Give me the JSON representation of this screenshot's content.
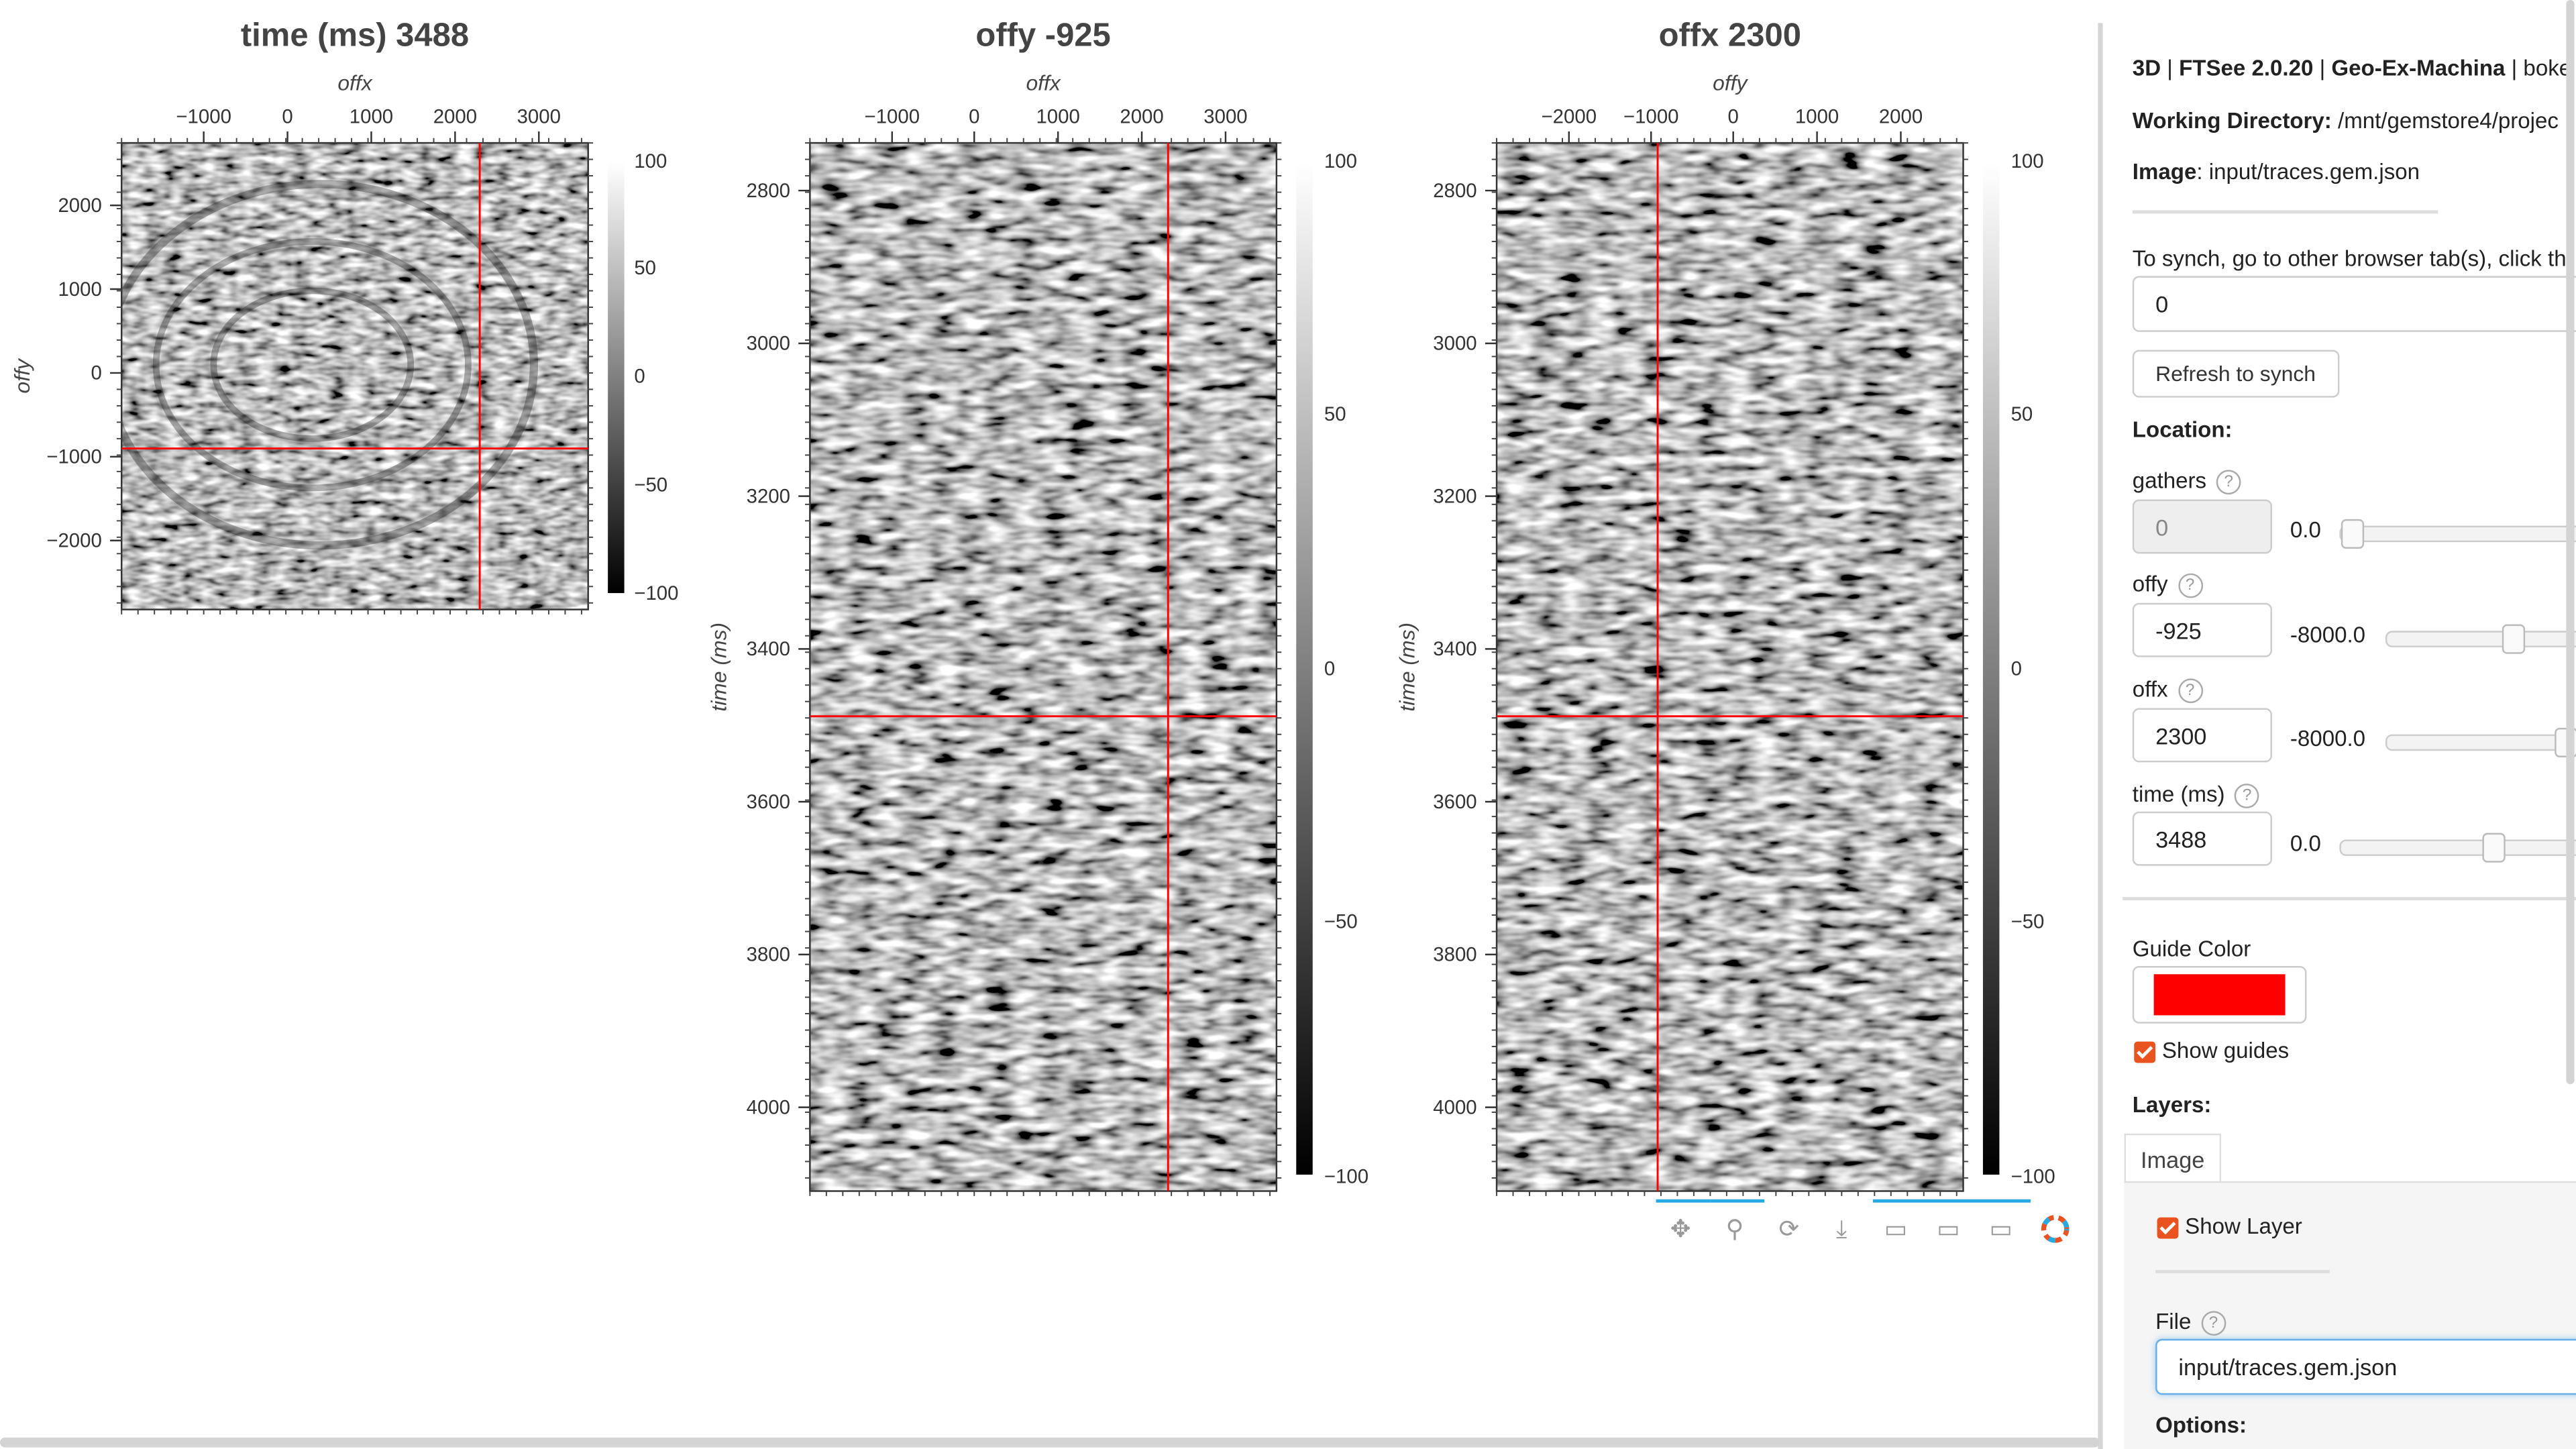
{
  "plots": [
    {
      "title": "time (ms) 3488",
      "xlabel": "offx",
      "ylabel": "offy",
      "xticks": [
        "−1000",
        "0",
        "1000",
        "2000",
        "3000"
      ],
      "yticks": [
        "2000",
        "1000",
        "0",
        "−1000",
        "−2000"
      ],
      "colorbar_ticks": [
        "100",
        "50",
        "0",
        "−50",
        "−100"
      ],
      "guide_x": 2300,
      "guide_y": -925
    },
    {
      "title": "offy -925",
      "xlabel": "offx",
      "ylabel": "time (ms)",
      "xticks": [
        "−1000",
        "0",
        "1000",
        "2000",
        "3000"
      ],
      "yticks": [
        "2800",
        "3000",
        "3200",
        "3400",
        "3600",
        "3800",
        "4000"
      ],
      "colorbar_ticks": [
        "100",
        "50",
        "0",
        "−50",
        "−100"
      ],
      "guide_x": 2300,
      "guide_y": 3488
    },
    {
      "title": "offx 2300",
      "xlabel": "offy",
      "ylabel": "time (ms)",
      "xticks": [
        "−2000",
        "−1000",
        "0",
        "1000",
        "2000"
      ],
      "yticks": [
        "2800",
        "3000",
        "3200",
        "3400",
        "3600",
        "3800",
        "4000"
      ],
      "colorbar_ticks": [
        "100",
        "50",
        "0",
        "−50",
        "−100"
      ],
      "guide_x": -925,
      "guide_y": 3488
    }
  ],
  "colors": {
    "guide": "#ff0000",
    "accent": "#e8531f",
    "toolbar_active": "#26aae1"
  },
  "toolbar": {
    "icons": [
      "pan-icon",
      "wheel-zoom-icon",
      "reset-icon",
      "save-icon",
      "hover-icon",
      "hover-icon",
      "hover-icon",
      "bokeh-logo-icon"
    ]
  },
  "sidebar": {
    "header": {
      "part1": "3D",
      "sep1": " | ",
      "part2": "FTSee 2.0.20",
      "sep2": " | ",
      "part3": "Geo-Ex-Machina",
      "sep3": " | ",
      "part4": "boke"
    },
    "working_dir_label": "Working Directory:",
    "working_dir_value": " /mnt/gemstore4/projec",
    "image_label": "Image",
    "image_value": ": input/traces.gem.json",
    "synch_text": "To synch, go to other browser tab(s), click th",
    "synch_value": "0",
    "refresh_button": "Refresh to synch",
    "location_label": "Location:",
    "gathers": {
      "label": "gathers",
      "value": "0",
      "slider_min": "0.0",
      "slider_fraction": 0.0
    },
    "offy": {
      "label": "offy",
      "value": "-925",
      "slider_min": "-8000.0",
      "slider_fraction": 0.44
    },
    "offx": {
      "label": "offx",
      "value": "2300",
      "slider_min": "-8000.0",
      "slider_fraction": 0.66
    },
    "time": {
      "label": "time (ms)",
      "value": "3488",
      "slider_min": "0.0",
      "slider_fraction": 0.62
    },
    "guide_color_label": "Guide Color",
    "show_guides_label": "Show guides",
    "layers_label": "Layers:",
    "tab_image": "Image",
    "show_layer_label": "Show Layer",
    "file_label": "File",
    "file_value": "input/traces.gem.json",
    "options_label": "Options:",
    "help_glyph": "?"
  }
}
